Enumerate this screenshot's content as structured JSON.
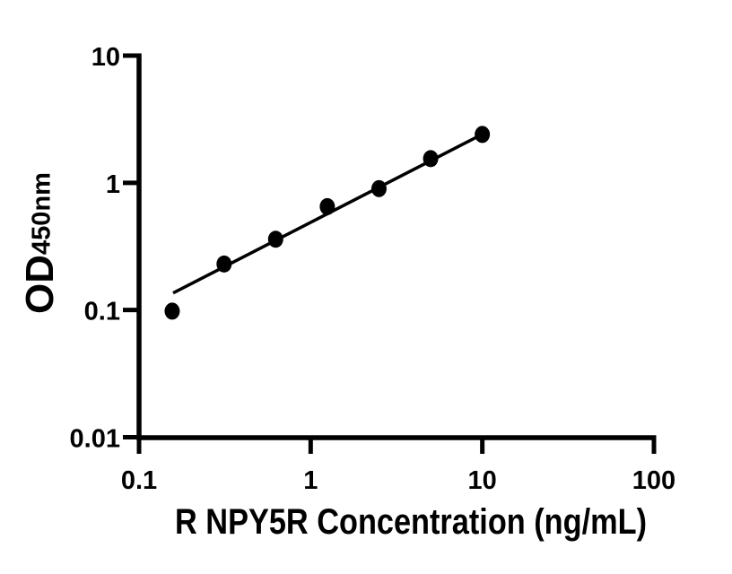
{
  "figure": {
    "background_color": "#ffffff",
    "ink_color": "#000000",
    "title": ""
  },
  "chart_data": {
    "type": "scatter",
    "title": "",
    "xlabel": "R NPY5R Concentration (ng/mL)",
    "ylabel": "OD",
    "ylabel_subscript": "450nm",
    "x_scale": "log10",
    "y_scale": "log10",
    "xlim": [
      0.1,
      100
    ],
    "ylim": [
      0.01,
      10
    ],
    "grid": false,
    "legend": "none",
    "axis_color": "#000000",
    "marker": "filled-circle",
    "marker_color": "#000000",
    "x_ticks": [
      {
        "value": 0.1,
        "label": "0.1"
      },
      {
        "value": 1,
        "label": "1"
      },
      {
        "value": 10,
        "label": "10"
      },
      {
        "value": 100,
        "label": "100"
      }
    ],
    "y_ticks": [
      {
        "value": 0.01,
        "label": "0.01"
      },
      {
        "value": 0.1,
        "label": "0.1"
      },
      {
        "value": 1,
        "label": "1"
      },
      {
        "value": 10,
        "label": "10"
      }
    ],
    "points": [
      {
        "x": 0.156,
        "y": 0.098
      },
      {
        "x": 0.313,
        "y": 0.23
      },
      {
        "x": 0.625,
        "y": 0.36
      },
      {
        "x": 1.25,
        "y": 0.65
      },
      {
        "x": 2.5,
        "y": 0.9
      },
      {
        "x": 5,
        "y": 1.55
      },
      {
        "x": 10,
        "y": 2.4
      }
    ],
    "trend_line": {
      "x1": 0.158,
      "y1": 0.136,
      "x2": 10,
      "y2": 2.41,
      "color": "#000000"
    }
  }
}
